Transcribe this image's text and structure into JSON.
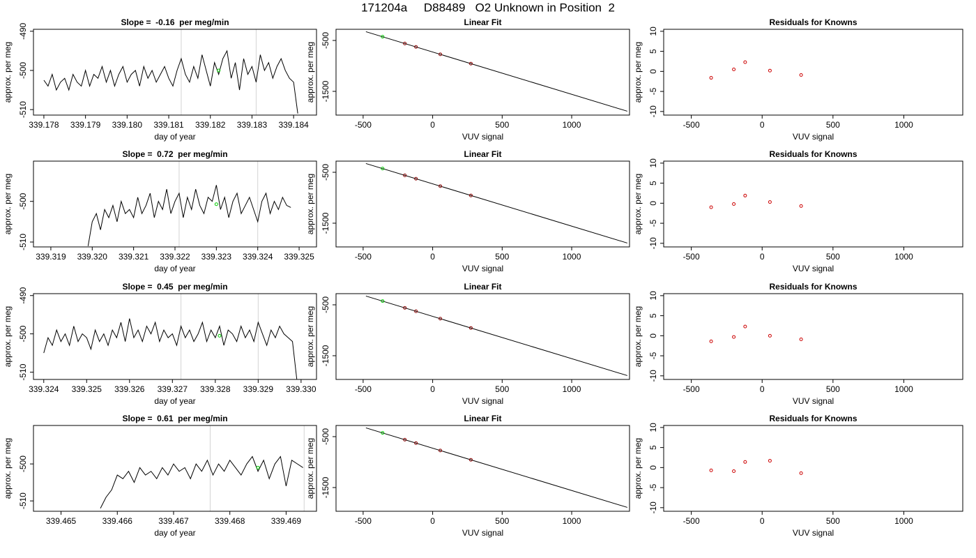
{
  "title": "171204a     D88489   O2 Unknown in Position  2",
  "chart_data": [
    {
      "type": "line",
      "title": "Slope =  -0.16  per meg/min",
      "x_label": "day of year",
      "y_label": "approx. per meg",
      "color": "#000000",
      "x": [
        339.178,
        339.1781,
        339.1782,
        339.1783,
        339.1784,
        339.1785,
        339.1786,
        339.1787,
        339.1788,
        339.1789,
        339.179,
        339.1791,
        339.1792,
        339.1793,
        339.1794,
        339.1795,
        339.1796,
        339.1797,
        339.1798,
        339.1799,
        339.18,
        339.1801,
        339.1802,
        339.1803,
        339.1804,
        339.1805,
        339.1806,
        339.1807,
        339.1808,
        339.1809,
        339.181,
        339.1811,
        339.1812,
        339.1813,
        339.1814,
        339.1815,
        339.1816,
        339.1817,
        339.1818,
        339.1819,
        339.182,
        339.1821,
        339.1822,
        339.1823,
        339.1824,
        339.1825,
        339.1826,
        339.1827,
        339.1828,
        339.1829,
        339.183,
        339.1831,
        339.1832,
        339.1833,
        339.1834,
        339.1835,
        339.1836,
        339.1837,
        339.1838,
        339.1839,
        339.184,
        339.1841
      ],
      "values": [
        -502.5,
        -504,
        -501,
        -505,
        -503,
        -502,
        -505,
        -501,
        -503,
        -504,
        -500,
        -504,
        -501,
        -502,
        -499,
        -503,
        -500,
        -504,
        -501,
        -499,
        -503,
        -501,
        -500,
        -504,
        -499,
        -502,
        -500,
        -503,
        -501,
        -499,
        -502,
        -504,
        -500,
        -497,
        -501,
        -503,
        -499,
        -502,
        -496,
        -500,
        -504,
        -498,
        -501,
        -497,
        -495,
        -502,
        -498,
        -505,
        -497,
        -501,
        -499,
        -503,
        -496,
        -500,
        -498,
        -502,
        -499,
        -497,
        -500,
        -502,
        -503,
        -511
      ],
      "vlines": [
        339.1813,
        339.1831
      ],
      "vline_color": "#d3d3d3",
      "marker": {
        "x": 339.1822,
        "y": -500,
        "color": "#00cc00"
      },
      "xlim": [
        339.17775,
        339.18455
      ],
      "ylim": [
        -511.4,
        -489.5
      ],
      "xticks": [
        339.178,
        339.179,
        {
          "value": 339.18,
          "label": "339.180"
        },
        339.181,
        339.182,
        339.183,
        339.184
      ],
      "yticks": [
        -510,
        -500,
        -490
      ]
    },
    {
      "type": "scatter",
      "title": "Linear Fit",
      "x_label": "VUV signal",
      "y_label": "approx. per meg",
      "x": [
        -360,
        -200,
        -120,
        55,
        275
      ],
      "values": [
        -427,
        -560,
        -627,
        -772,
        -955
      ],
      "point_colors": [
        "#00cc00",
        "#8b0000",
        "#8b0000",
        "#8b0000",
        "#8b0000"
      ],
      "fit_line": {
        "x": [
          -480,
          1400
        ],
        "y": [
          -328,
          -1890
        ],
        "color": "#000000"
      },
      "xlim": [
        -695,
        1416
      ],
      "ylim": [
        -1966,
        -281
      ],
      "xticks": [
        -500,
        0,
        500,
        1000
      ],
      "yticks": [
        -1500,
        -500
      ]
    },
    {
      "type": "scatter",
      "title": "Residuals for Knowns",
      "x_label": "VUV signal",
      "y_label": "approx. per meg",
      "x": [
        -360,
        -200,
        -120,
        55,
        275
      ],
      "values": [
        -1.6,
        0.5,
        2.3,
        0.2,
        -0.9
      ],
      "point_colors": [
        "#cc0000",
        "#cc0000",
        "#cc0000",
        "#cc0000",
        "#cc0000"
      ],
      "xlim": [
        -695,
        1416
      ],
      "ylim": [
        -10.9,
        10.5
      ],
      "xticks": [
        -500,
        0,
        500,
        1000
      ],
      "yticks": [
        -10,
        -5,
        0,
        5,
        10
      ]
    },
    {
      "type": "line",
      "title": "Slope =  0.72  per meg/min",
      "x_label": "day of year",
      "y_label": "approx. per meg",
      "color": "#000000",
      "x": [
        339.3199,
        339.32,
        339.3201,
        339.3202,
        339.3203,
        339.3204,
        339.3205,
        339.3206,
        339.3207,
        339.3208,
        339.3209,
        339.321,
        339.3211,
        339.3212,
        339.3213,
        339.3214,
        339.3215,
        339.3216,
        339.3217,
        339.3218,
        339.3219,
        339.322,
        339.3221,
        339.3222,
        339.3223,
        339.3224,
        339.3225,
        339.3226,
        339.3227,
        339.3228,
        339.3229,
        339.323,
        339.3231,
        339.3232,
        339.3233,
        339.3234,
        339.3235,
        339.3236,
        339.3237,
        339.3238,
        339.3239,
        339.324,
        339.3241,
        339.3242,
        339.3243,
        339.3244,
        339.3245,
        339.3246,
        339.3247,
        339.3248
      ],
      "values": [
        -511,
        -505,
        -503,
        -507,
        -502,
        -504,
        -501,
        -505,
        -500,
        -503,
        -502,
        -504,
        -499,
        -503,
        -501,
        -498,
        -504,
        -500,
        -502,
        -497,
        -503,
        -500,
        -498,
        -504,
        -499,
        -502,
        -497,
        -501,
        -503,
        -499,
        -500,
        -496,
        -502,
        -499,
        -504,
        -500,
        -498,
        -503,
        -501,
        -499,
        -502,
        -505,
        -500,
        -498,
        -503,
        -500,
        -502,
        -499,
        -501,
        -501.5
      ],
      "vlines": [
        339.3221,
        339.324
      ],
      "vline_color": "#d3d3d3",
      "marker": {
        "x": 339.323,
        "y": -500.7,
        "color": "#00cc00"
      },
      "xlim": [
        339.31858,
        339.32542
      ],
      "ylim": [
        -511.2,
        -490.1
      ],
      "xticks": [
        339.319,
        {
          "value": 339.32,
          "label": "339.320"
        },
        339.321,
        339.322,
        339.323,
        339.324,
        339.325
      ],
      "yticks": [
        -510,
        -500
      ]
    },
    {
      "type": "scatter",
      "title": "Linear Fit",
      "x_label": "VUV signal",
      "y_label": "approx. per meg",
      "x": [
        -360,
        -200,
        -120,
        55,
        275
      ],
      "values": [
        -427,
        -560,
        -627,
        -772,
        -955
      ],
      "point_colors": [
        "#00cc00",
        "#8b0000",
        "#8b0000",
        "#8b0000",
        "#8b0000"
      ],
      "fit_line": {
        "x": [
          -480,
          1400
        ],
        "y": [
          -328,
          -1890
        ],
        "color": "#000000"
      },
      "xlim": [
        -695,
        1416
      ],
      "ylim": [
        -1966,
        -281
      ],
      "xticks": [
        -500,
        0,
        500,
        1000
      ],
      "yticks": [
        -1500,
        -500
      ]
    },
    {
      "type": "scatter",
      "title": "Residuals for Knowns",
      "x_label": "VUV signal",
      "y_label": "approx. per meg",
      "x": [
        -360,
        -200,
        -120,
        55,
        275
      ],
      "values": [
        -1,
        -0.2,
        1.9,
        0.3,
        -0.7
      ],
      "point_colors": [
        "#cc0000",
        "#cc0000",
        "#cc0000",
        "#cc0000",
        "#cc0000"
      ],
      "xlim": [
        -695,
        1416
      ],
      "ylim": [
        -10.9,
        10.5
      ],
      "xticks": [
        -500,
        0,
        500,
        1000
      ],
      "yticks": [
        -10,
        -5,
        0,
        5,
        10
      ]
    },
    {
      "type": "line",
      "title": "Slope =  0.45  per meg/min",
      "x_label": "day of year",
      "y_label": "approx. per meg",
      "color": "#000000",
      "x": [
        339.324,
        339.3241,
        339.3242,
        339.3243,
        339.3244,
        339.3245,
        339.3246,
        339.3247,
        339.3248,
        339.3249,
        339.325,
        339.3251,
        339.3252,
        339.3253,
        339.3254,
        339.3255,
        339.3256,
        339.3257,
        339.3258,
        339.3259,
        339.326,
        339.3261,
        339.3262,
        339.3263,
        339.3264,
        339.3265,
        339.3266,
        339.3267,
        339.3268,
        339.3269,
        339.327,
        339.3271,
        339.3272,
        339.3273,
        339.3274,
        339.3275,
        339.3276,
        339.3277,
        339.3278,
        339.3279,
        339.328,
        339.3281,
        339.3282,
        339.3283,
        339.3284,
        339.3285,
        339.3286,
        339.3287,
        339.3288,
        339.3289,
        339.329,
        339.3291,
        339.3292,
        339.3293,
        339.3294,
        339.3295,
        339.3296,
        339.3297,
        339.3298,
        339.3299
      ],
      "values": [
        -505,
        -501,
        -503,
        -499,
        -502,
        -500,
        -503,
        -498,
        -502,
        -500,
        -501,
        -504,
        -499,
        -502,
        -500,
        -503,
        -499,
        -501,
        -497,
        -502,
        -496,
        -501,
        -499,
        -502,
        -498,
        -500,
        -497,
        -502,
        -499,
        -501,
        -500,
        -503,
        -498,
        -501,
        -499,
        -502,
        -500,
        -497,
        -502,
        -499,
        -501,
        -498,
        -503,
        -499,
        -500,
        -502,
        -498,
        -501,
        -499,
        -502,
        -497,
        -500,
        -503,
        -499,
        -501,
        -498,
        -500,
        -501,
        -502,
        -511.8
      ],
      "vlines": [
        339.3272,
        339.329
      ],
      "vline_color": "#d3d3d3",
      "marker": {
        "x": 339.3281,
        "y": -500.5,
        "color": "#00cc00"
      },
      "xlim": [
        339.32376,
        339.33036
      ],
      "ylim": [
        -511.9,
        -489.5
      ],
      "xticks": [
        339.324,
        339.325,
        339.326,
        339.327,
        339.328,
        339.329,
        {
          "value": 339.33,
          "label": "339.330"
        }
      ],
      "yticks": [
        -510,
        -500,
        -490
      ]
    },
    {
      "type": "scatter",
      "title": "Linear Fit",
      "x_label": "VUV signal",
      "y_label": "approx. per meg",
      "x": [
        -360,
        -200,
        -120,
        55,
        275
      ],
      "values": [
        -427,
        -560,
        -627,
        -772,
        -955
      ],
      "point_colors": [
        "#00cc00",
        "#8b0000",
        "#8b0000",
        "#8b0000",
        "#8b0000"
      ],
      "fit_line": {
        "x": [
          -480,
          1400
        ],
        "y": [
          -328,
          -1890
        ],
        "color": "#000000"
      },
      "xlim": [
        -695,
        1416
      ],
      "ylim": [
        -1966,
        -281
      ],
      "xticks": [
        -500,
        0,
        500,
        1000
      ],
      "yticks": [
        -1500,
        -500
      ]
    },
    {
      "type": "scatter",
      "title": "Residuals for Knowns",
      "x_label": "VUV signal",
      "y_label": "approx. per meg",
      "x": [
        -360,
        -200,
        -120,
        55,
        275
      ],
      "values": [
        -1.4,
        -0.3,
        2.3,
        0,
        -0.9
      ],
      "point_colors": [
        "#cc0000",
        "#cc0000",
        "#cc0000",
        "#cc0000",
        "#cc0000"
      ],
      "xlim": [
        -695,
        1416
      ],
      "ylim": [
        -10.9,
        10.5
      ],
      "xticks": [
        -500,
        0,
        500,
        1000
      ],
      "yticks": [
        -10,
        -5,
        0,
        5,
        10
      ]
    },
    {
      "type": "line",
      "title": "Slope =  0.61  per meg/min",
      "x_label": "day of year",
      "y_label": "approx. per meg",
      "color": "#000000",
      "x": [
        339.4657,
        339.4658,
        339.4659,
        339.466,
        339.4661,
        339.4662,
        339.4663,
        339.4664,
        339.4665,
        339.4666,
        339.4667,
        339.4668,
        339.4669,
        339.467,
        339.4671,
        339.4672,
        339.4673,
        339.4674,
        339.4675,
        339.4676,
        339.4677,
        339.4678,
        339.4679,
        339.468,
        339.4681,
        339.4682,
        339.4683,
        339.4684,
        339.4685,
        339.4686,
        339.4687,
        339.4688,
        339.4689,
        339.469,
        339.4691,
        339.4692,
        339.4693
      ],
      "values": [
        -512,
        -509,
        -507,
        -503,
        -504,
        -502,
        -505,
        -501,
        -503,
        -502,
        -504,
        -501,
        -503,
        -500,
        -502,
        -501,
        -504,
        -500,
        -502,
        -499,
        -503,
        -500,
        -502,
        -499,
        -501,
        -503,
        -500,
        -498,
        -502,
        -499,
        -504,
        -500,
        -498,
        -506,
        -499,
        -500,
        -501
      ],
      "vlines": [
        339.46765,
        339.46932
      ],
      "vline_color": "#d3d3d3",
      "marker": {
        "x": 339.4685,
        "y": -501,
        "color": "#00cc00"
      },
      "xlim": [
        339.46451,
        339.46954
      ],
      "ylim": [
        -512.8,
        -489.6
      ],
      "xticks": [
        339.465,
        339.466,
        339.467,
        339.468,
        339.469
      ],
      "yticks": [
        -510,
        -500
      ]
    },
    {
      "type": "scatter",
      "title": "Linear Fit",
      "x_label": "VUV signal",
      "y_label": "approx. per meg",
      "x": [
        -360,
        -200,
        -120,
        55,
        275
      ],
      "values": [
        -427,
        -560,
        -627,
        -772,
        -955
      ],
      "point_colors": [
        "#00cc00",
        "#8b0000",
        "#8b0000",
        "#8b0000",
        "#8b0000"
      ],
      "fit_line": {
        "x": [
          -480,
          1400
        ],
        "y": [
          -328,
          -1890
        ],
        "color": "#000000"
      },
      "xlim": [
        -695,
        1416
      ],
      "ylim": [
        -1966,
        -281
      ],
      "xticks": [
        -500,
        0,
        500,
        1000
      ],
      "yticks": [
        -1500,
        -500
      ]
    },
    {
      "type": "scatter",
      "title": "Residuals for Knowns",
      "x_label": "VUV signal",
      "y_label": "approx. per meg",
      "x": [
        -360,
        -200,
        -120,
        55,
        275
      ],
      "values": [
        -0.7,
        -0.9,
        1.4,
        1.7,
        -1.4
      ],
      "point_colors": [
        "#cc0000",
        "#cc0000",
        "#cc0000",
        "#cc0000",
        "#cc0000"
      ],
      "xlim": [
        -695,
        1416
      ],
      "ylim": [
        -10.9,
        10.5
      ],
      "xticks": [
        -500,
        0,
        500,
        1000
      ],
      "yticks": [
        -10,
        -5,
        0,
        5,
        10
      ]
    }
  ]
}
